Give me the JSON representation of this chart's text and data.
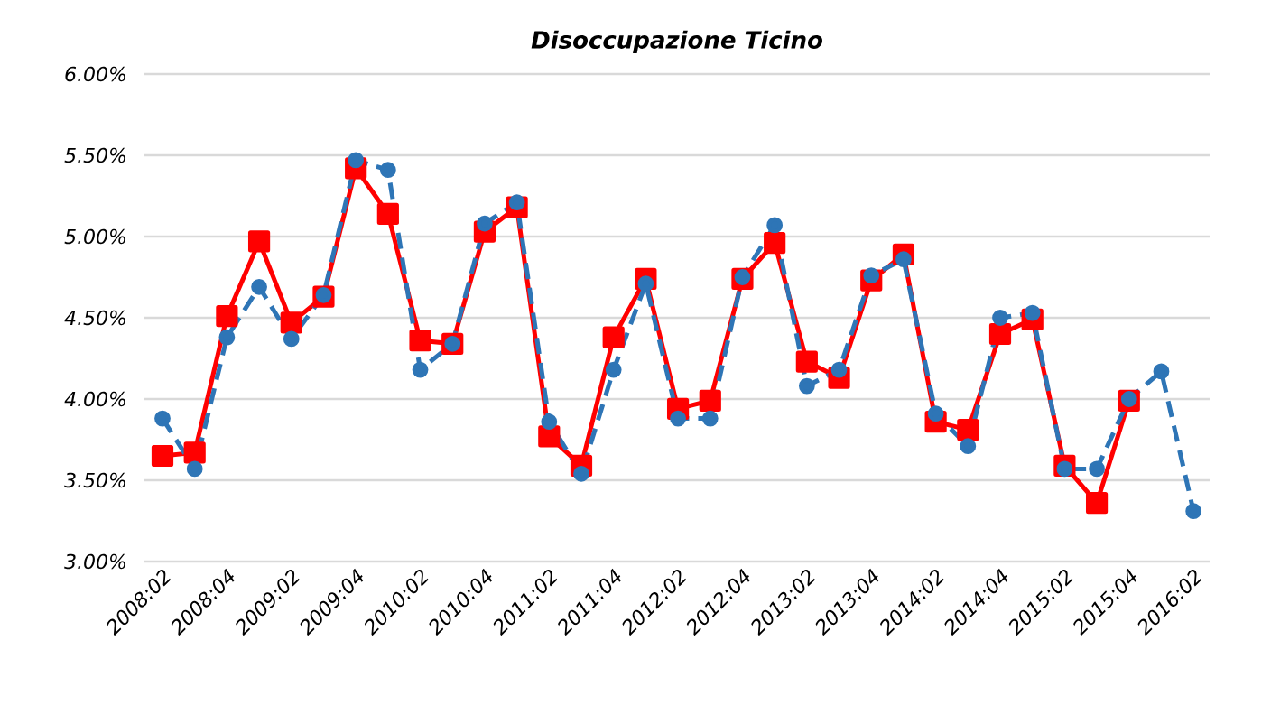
{
  "chart_data": {
    "type": "line",
    "title": "Disoccupazione Ticino",
    "categories": [
      "2008:02",
      null,
      "2008:04",
      null,
      "2009:02",
      null,
      "2009:04",
      null,
      "2010:02",
      null,
      "2010:04",
      null,
      "2011:02",
      null,
      "2011:04",
      null,
      "2012:02",
      null,
      "2012:04",
      null,
      "2013:02",
      null,
      "2013:04",
      null,
      "2014:02",
      null,
      "2014:04",
      null,
      "2015:02",
      null,
      "2015:04",
      null,
      "2016:02"
    ],
    "series": [
      {
        "color": "#ff0000",
        "marker": "square",
        "line_style": "solid",
        "values": [
          3.65,
          3.67,
          4.51,
          4.97,
          4.47,
          4.63,
          5.42,
          5.14,
          4.36,
          4.34,
          5.03,
          5.18,
          3.77,
          3.59,
          4.38,
          4.74,
          3.94,
          3.99,
          4.74,
          4.96,
          4.23,
          4.13,
          4.73,
          4.89,
          3.86,
          3.81,
          4.4,
          4.49,
          3.59,
          3.36,
          3.99,
          null,
          null
        ]
      },
      {
        "color": "#2e75b6",
        "marker": "circle",
        "line_style": "dashed",
        "values": [
          3.88,
          3.57,
          4.38,
          4.69,
          4.37,
          4.64,
          5.47,
          5.41,
          4.18,
          4.34,
          5.08,
          5.21,
          3.86,
          3.54,
          4.18,
          4.71,
          3.88,
          3.88,
          4.75,
          5.07,
          4.08,
          4.18,
          4.76,
          4.86,
          3.91,
          3.71,
          4.5,
          4.53,
          3.57,
          3.57,
          4.0,
          4.17,
          3.31
        ]
      }
    ],
    "ylim": [
      3,
      6
    ],
    "yticks": [
      {
        "value": 3,
        "label": "3.00%"
      },
      {
        "value": 3.5,
        "label": "3.50%"
      },
      {
        "value": 4,
        "label": "4.00%"
      },
      {
        "value": 4.5,
        "label": "4.50%"
      },
      {
        "value": 5,
        "label": "5.00%"
      },
      {
        "value": 5.5,
        "label": "5.50%"
      },
      {
        "value": 6,
        "label": "6.00%"
      }
    ],
    "grid": "y"
  }
}
